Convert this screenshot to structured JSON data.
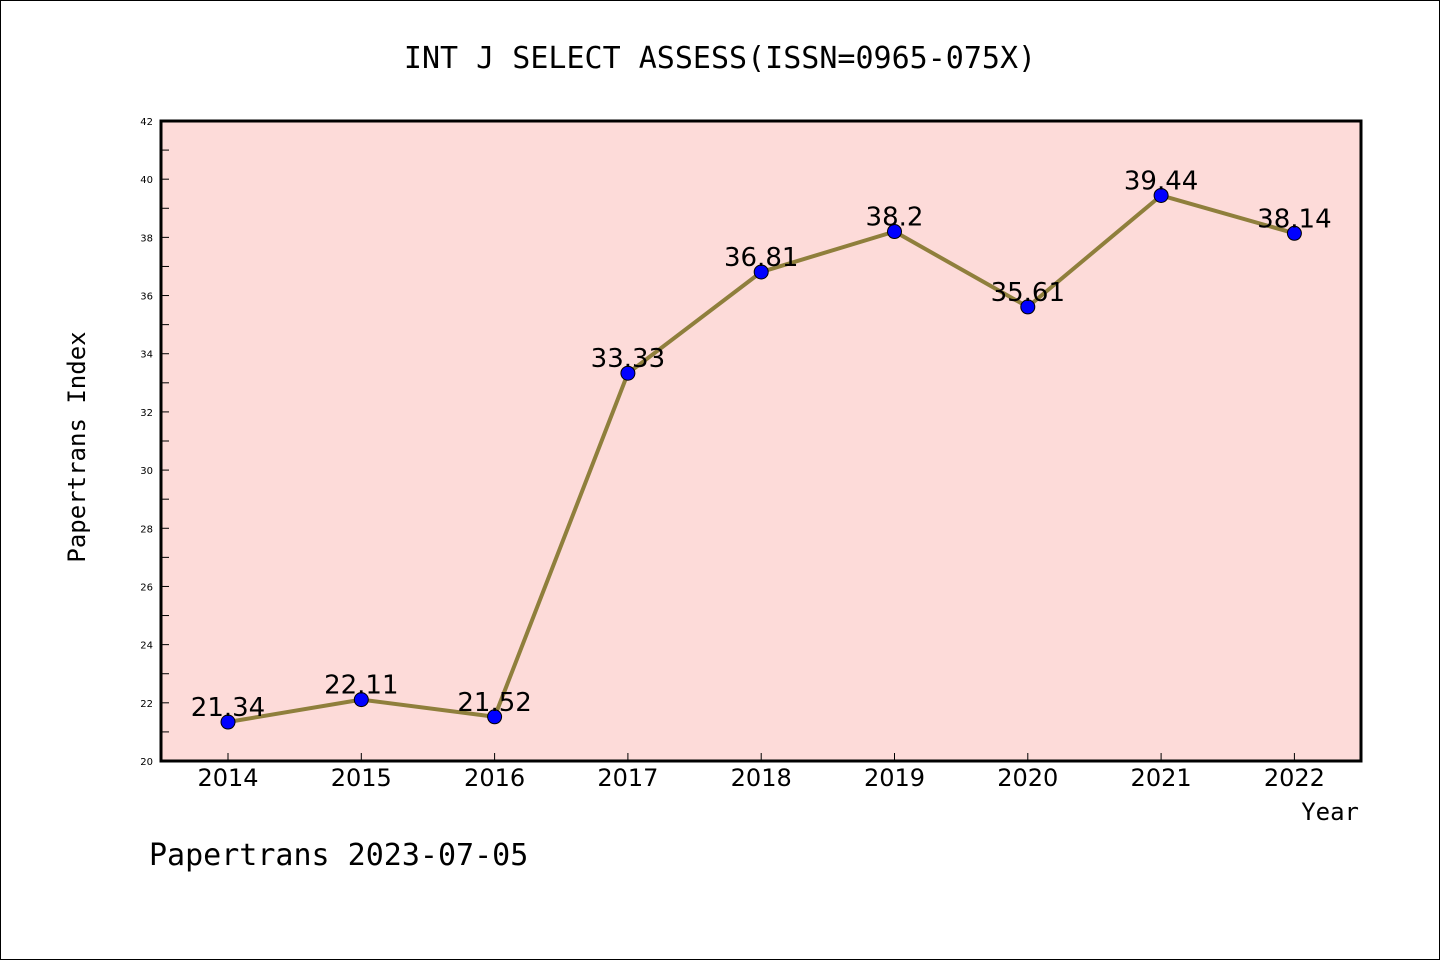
{
  "chart_data": {
    "type": "line",
    "title": "INT J SELECT ASSESS(ISSN=0965-075X)",
    "xlabel": "Year",
    "ylabel": "Papertrans Index",
    "categories": [
      "2014",
      "2015",
      "2016",
      "2017",
      "2018",
      "2019",
      "2020",
      "2021",
      "2022"
    ],
    "values": [
      21.34,
      22.11,
      21.52,
      33.33,
      36.81,
      38.2,
      35.61,
      39.44,
      38.14
    ],
    "data_labels": [
      "21.34",
      "22.11",
      "21.52",
      "33.33",
      "36.81",
      "38.2",
      "35.61",
      "39.44",
      "38.14"
    ],
    "ylim": [
      20,
      42
    ],
    "yticks": [
      20,
      22,
      24,
      26,
      28,
      30,
      32,
      34,
      36,
      38,
      40,
      42
    ],
    "grid": false,
    "legend": "none",
    "footer": "Papertrans 2023-07-05",
    "colors": {
      "plot_background": "#fddbd9",
      "line": "#8f7f3c",
      "marker": "#0000ff"
    }
  }
}
